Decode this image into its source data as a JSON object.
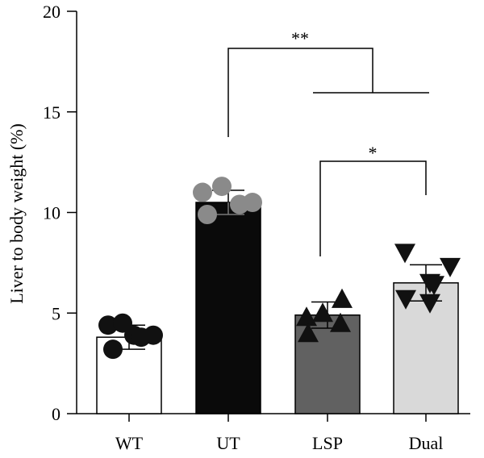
{
  "chart_data": {
    "type": "bar",
    "title": "",
    "xlabel": "",
    "ylabel": "Liver to body weight (%)",
    "ylim": [
      0,
      20
    ],
    "yticks": [
      0,
      5,
      10,
      15,
      20
    ],
    "categories": [
      "WT",
      "UT",
      "LSP",
      "Dual"
    ],
    "values": [
      3.8,
      10.5,
      4.9,
      6.5
    ],
    "errors": [
      0.6,
      0.6,
      0.65,
      0.9
    ],
    "bar_colors": [
      "#ffffff",
      "#0a0a0a",
      "#616161",
      "#d9d9d9"
    ],
    "point_colors": [
      "#111111",
      "#8a8a8a",
      "#111111",
      "#111111"
    ],
    "point_markers": [
      "circle",
      "circle",
      "triangle-up",
      "triangle-down"
    ],
    "points": [
      [
        4.4,
        4.5,
        3.9,
        3.8,
        3.9,
        3.2
      ],
      [
        11.0,
        11.3,
        9.9,
        10.4,
        10.5
      ],
      [
        4.8,
        5.0,
        5.7,
        4.0,
        4.5
      ],
      [
        8.0,
        6.5,
        5.7,
        6.4,
        7.3,
        5.5
      ]
    ],
    "significance": [
      {
        "label": "**",
        "from": "UT",
        "to": "LSP+Dual"
      },
      {
        "label": "*",
        "from": "LSP",
        "to": "Dual"
      }
    ],
    "grid": false
  }
}
